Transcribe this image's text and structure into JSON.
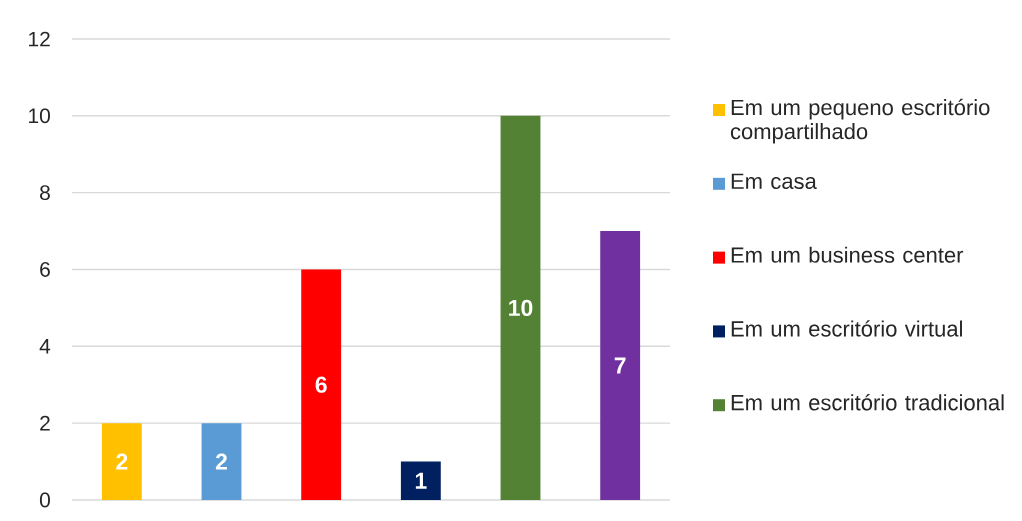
{
  "chart_data": {
    "type": "bar",
    "categories": [
      null,
      null,
      null,
      null,
      null,
      null
    ],
    "series": [
      {
        "name": "Em um pequeno escritório compartilhado",
        "color": "#ffc000",
        "values": [
          2,
          null,
          null,
          null,
          null,
          null
        ]
      },
      {
        "name": "Em casa",
        "color": "#5b9bd5",
        "values": [
          null,
          2,
          null,
          null,
          null,
          null
        ]
      },
      {
        "name": "Em um business center",
        "color": "#ff0000",
        "values": [
          null,
          null,
          6,
          null,
          null,
          null
        ]
      },
      {
        "name": "Em um escritório virtual",
        "color": "#002060",
        "values": [
          null,
          null,
          null,
          1,
          null,
          null
        ]
      },
      {
        "name": "Em um escritório tradicional",
        "color": "#548235",
        "values": [
          null,
          null,
          null,
          null,
          10,
          null
        ]
      },
      {
        "color": "#7030a0",
        "values": [
          null,
          null,
          null,
          null,
          null,
          7
        ]
      }
    ],
    "ylim": [
      0,
      12
    ],
    "yticks": [
      0,
      2,
      4,
      6,
      8,
      10,
      12
    ],
    "grid": "y",
    "legend": "right",
    "tick_labels": "y",
    "data_labels": true
  }
}
